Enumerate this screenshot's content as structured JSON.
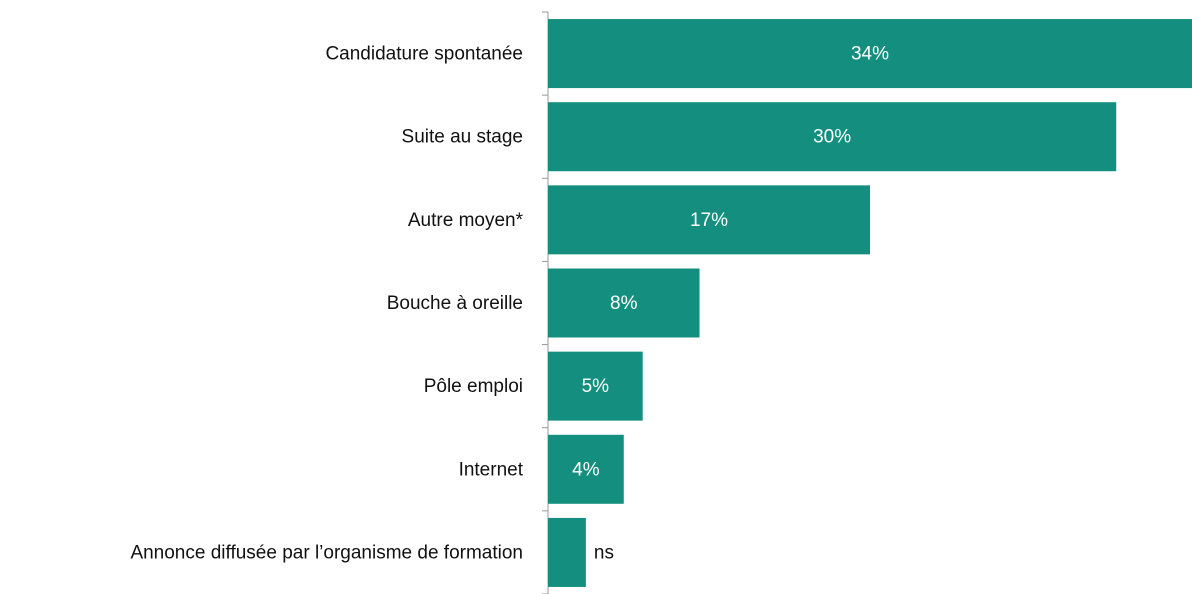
{
  "chart_data": {
    "type": "barh",
    "categories": [
      "Candidature spontanée",
      "Suite au stage",
      "Autre moyen*",
      "Bouche à oreille",
      "Pôle emploi",
      "Internet",
      "Annonce diffusée par l’organisme de formation"
    ],
    "values": [
      34,
      30,
      17,
      8,
      5,
      4,
      2
    ],
    "value_labels": [
      "34%",
      "30%",
      "17%",
      "8%",
      "5%",
      "4%",
      "ns"
    ],
    "color": "#148f7f"
  }
}
